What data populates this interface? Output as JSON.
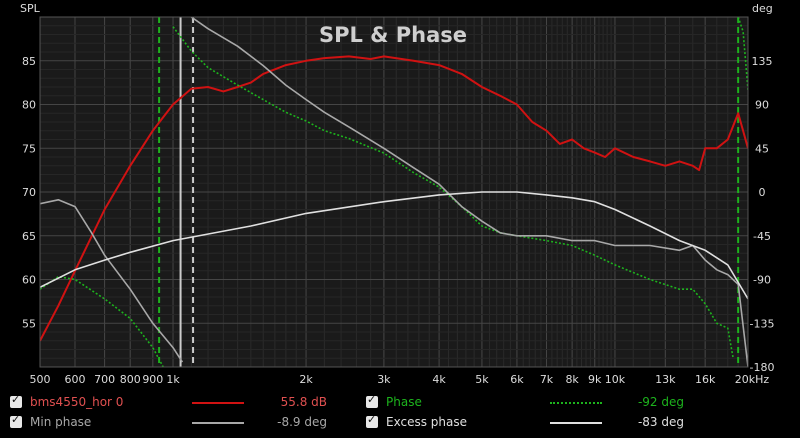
{
  "chart_data": {
    "type": "line",
    "title": "SPL & Phase",
    "ylabel": "SPL",
    "y2label": "deg",
    "xlim": [
      500,
      20000
    ],
    "xscale": "log",
    "ylim": [
      50,
      90
    ],
    "y2lim": [
      -180,
      180
    ],
    "x_ticks": [
      {
        "v": 500,
        "label": "500"
      },
      {
        "v": 600,
        "label": "600"
      },
      {
        "v": 700,
        "label": "700"
      },
      {
        "v": 800,
        "label": "800"
      },
      {
        "v": 900,
        "label": "900"
      },
      {
        "v": 1000,
        "label": "1k"
      },
      {
        "v": 2000,
        "label": "2k"
      },
      {
        "v": 3000,
        "label": "3k"
      },
      {
        "v": 4000,
        "label": "4k"
      },
      {
        "v": 5000,
        "label": "5k"
      },
      {
        "v": 6000,
        "label": "6k"
      },
      {
        "v": 7000,
        "label": "7k"
      },
      {
        "v": 8000,
        "label": "8k"
      },
      {
        "v": 9000,
        "label": "9k"
      },
      {
        "v": 10000,
        "label": "10k"
      },
      {
        "v": 13000,
        "label": "13k"
      },
      {
        "v": 16000,
        "label": "16k"
      },
      {
        "v": 20000,
        "label": "20kHz"
      }
    ],
    "y_ticks": [
      {
        "v": 55,
        "label": "55"
      },
      {
        "v": 60,
        "label": "60"
      },
      {
        "v": 65,
        "label": "65"
      },
      {
        "v": 70,
        "label": "70"
      },
      {
        "v": 75,
        "label": "75"
      },
      {
        "v": 80,
        "label": "80"
      },
      {
        "v": 85,
        "label": "85"
      }
    ],
    "y2_ticks": [
      {
        "v": -180,
        "label": "-180"
      },
      {
        "v": -135,
        "label": "-135"
      },
      {
        "v": -90,
        "label": "-90"
      },
      {
        "v": -45,
        "label": "-45"
      },
      {
        "v": 0,
        "label": "0"
      },
      {
        "v": 45,
        "label": "45"
      },
      {
        "v": 90,
        "label": "90"
      },
      {
        "v": 135,
        "label": "135"
      }
    ],
    "markers": [
      {
        "x": 930,
        "color": "#1db31d",
        "style": "dash"
      },
      {
        "x": 1040,
        "color": "#cccccc",
        "style": "solid"
      },
      {
        "x": 1110,
        "color": "#cccccc",
        "style": "dash"
      },
      {
        "x": 19000,
        "color": "#1db31d",
        "style": "dash"
      }
    ],
    "series": [
      {
        "name": "bms4550_hor 0",
        "axis": "spl",
        "color": "#d01212",
        "style": "solid",
        "points": [
          [
            500,
            53
          ],
          [
            550,
            57
          ],
          [
            600,
            61
          ],
          [
            700,
            68
          ],
          [
            800,
            73
          ],
          [
            900,
            77
          ],
          [
            1000,
            80
          ],
          [
            1100,
            81.8
          ],
          [
            1200,
            82
          ],
          [
            1300,
            81.5
          ],
          [
            1400,
            82
          ],
          [
            1500,
            82.5
          ],
          [
            1600,
            83.5
          ],
          [
            1800,
            84.5
          ],
          [
            2000,
            85
          ],
          [
            2200,
            85.3
          ],
          [
            2500,
            85.5
          ],
          [
            2800,
            85.2
          ],
          [
            3000,
            85.5
          ],
          [
            3500,
            85
          ],
          [
            4000,
            84.5
          ],
          [
            4500,
            83.5
          ],
          [
            5000,
            82
          ],
          [
            5500,
            81
          ],
          [
            6000,
            80
          ],
          [
            6500,
            78
          ],
          [
            7000,
            77
          ],
          [
            7500,
            75.5
          ],
          [
            8000,
            76
          ],
          [
            8500,
            75
          ],
          [
            9000,
            74.5
          ],
          [
            9500,
            74
          ],
          [
            10000,
            75
          ],
          [
            11000,
            74
          ],
          [
            12000,
            73.5
          ],
          [
            13000,
            73
          ],
          [
            14000,
            73.5
          ],
          [
            15000,
            73
          ],
          [
            15500,
            72.5
          ],
          [
            16000,
            75
          ],
          [
            17000,
            75
          ],
          [
            18000,
            76
          ],
          [
            19000,
            79
          ],
          [
            20000,
            75
          ]
        ]
      },
      {
        "name": "Phase",
        "axis": "phase",
        "color": "#1db31d",
        "style": "dot",
        "points": [
          [
            500,
            -100
          ],
          [
            550,
            -87
          ],
          [
            600,
            -90
          ],
          [
            700,
            -110
          ],
          [
            800,
            -130
          ],
          [
            900,
            -160
          ],
          [
            950,
            -180
          ],
          [
            1000,
            170
          ],
          [
            1100,
            145
          ],
          [
            1200,
            128
          ],
          [
            1400,
            110
          ],
          [
            1600,
            95
          ],
          [
            1800,
            82
          ],
          [
            2000,
            73
          ],
          [
            2200,
            63
          ],
          [
            2500,
            55
          ],
          [
            3000,
            40
          ],
          [
            3500,
            20
          ],
          [
            4000,
            5
          ],
          [
            4500,
            -15
          ],
          [
            5000,
            -35
          ],
          [
            5500,
            -42
          ],
          [
            6000,
            -45
          ],
          [
            7000,
            -50
          ],
          [
            8000,
            -55
          ],
          [
            9000,
            -65
          ],
          [
            10000,
            -75
          ],
          [
            12000,
            -90
          ],
          [
            14000,
            -100
          ],
          [
            15000,
            -100
          ],
          [
            16000,
            -115
          ],
          [
            17000,
            -135
          ],
          [
            18000,
            -140
          ],
          [
            18500,
            -170
          ],
          [
            19000,
            180
          ],
          [
            19500,
            165
          ],
          [
            20000,
            105
          ]
        ]
      },
      {
        "name": "Min phase",
        "axis": "phase",
        "color": "#a8a8a8",
        "style": "solid",
        "points": [
          [
            500,
            -12
          ],
          [
            550,
            -8
          ],
          [
            600,
            -15
          ],
          [
            650,
            -40
          ],
          [
            700,
            -65
          ],
          [
            800,
            -100
          ],
          [
            900,
            -135
          ],
          [
            1000,
            -160
          ],
          [
            1050,
            -175
          ],
          [
            1100,
            180
          ],
          [
            1200,
            168
          ],
          [
            1400,
            150
          ],
          [
            1600,
            130
          ],
          [
            1800,
            110
          ],
          [
            2000,
            95
          ],
          [
            2200,
            82
          ],
          [
            2500,
            67
          ],
          [
            3000,
            45
          ],
          [
            3500,
            25
          ],
          [
            4000,
            8
          ],
          [
            4500,
            -15
          ],
          [
            5000,
            -30
          ],
          [
            5500,
            -42
          ],
          [
            6000,
            -45
          ],
          [
            7000,
            -45
          ],
          [
            8000,
            -50
          ],
          [
            9000,
            -50
          ],
          [
            10000,
            -55
          ],
          [
            12000,
            -55
          ],
          [
            14000,
            -60
          ],
          [
            15000,
            -55
          ],
          [
            16000,
            -70
          ],
          [
            17000,
            -80
          ],
          [
            18000,
            -85
          ],
          [
            19000,
            -95
          ],
          [
            20000,
            -180
          ]
        ]
      },
      {
        "name": "Excess phase",
        "axis": "phase",
        "color": "#e0e0e0",
        "style": "solid",
        "points": [
          [
            500,
            -98
          ],
          [
            600,
            -80
          ],
          [
            700,
            -70
          ],
          [
            800,
            -62
          ],
          [
            1000,
            -50
          ],
          [
            1500,
            -35
          ],
          [
            2000,
            -22
          ],
          [
            3000,
            -10
          ],
          [
            4000,
            -3
          ],
          [
            5000,
            0
          ],
          [
            6000,
            0
          ],
          [
            7000,
            -3
          ],
          [
            8000,
            -6
          ],
          [
            9000,
            -10
          ],
          [
            10000,
            -18
          ],
          [
            12000,
            -35
          ],
          [
            14000,
            -50
          ],
          [
            16000,
            -60
          ],
          [
            18000,
            -75
          ],
          [
            20000,
            -110
          ]
        ]
      }
    ]
  },
  "legend": [
    {
      "name": "bms4550_hor 0",
      "value": "55.8 dB",
      "color": "#d01212",
      "style": "solid"
    },
    {
      "name": "Phase",
      "value": "-92 deg",
      "color": "#1db31d",
      "style": "dot"
    },
    {
      "name": "Min phase",
      "value": "-8.9 deg",
      "color": "#a8a8a8",
      "style": "solid"
    },
    {
      "name": "Excess phase",
      "value": "-83 deg",
      "color": "#e0e0e0",
      "style": "solid"
    }
  ]
}
